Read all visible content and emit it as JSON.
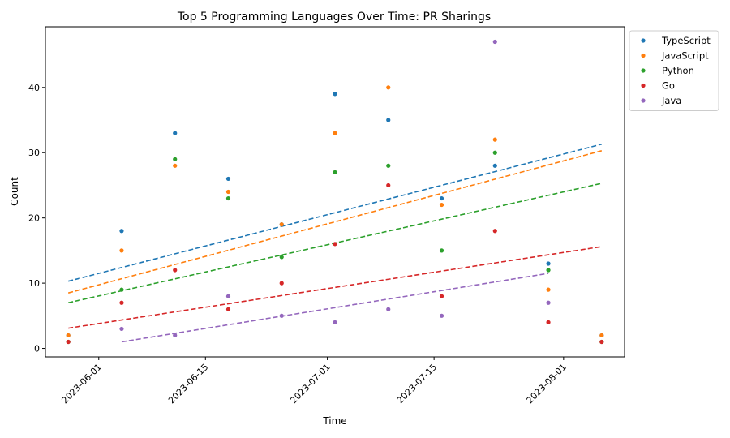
{
  "chart_data": {
    "type": "scatter",
    "title": "Top 5 Programming Languages Over Time: PR Sharings",
    "xlabel": "Time",
    "ylabel": "Count",
    "x": [
      "2023-05-28",
      "2023-06-04",
      "2023-06-11",
      "2023-06-18",
      "2023-06-25",
      "2023-07-02",
      "2023-07-09",
      "2023-07-16",
      "2023-07-23",
      "2023-07-30",
      "2023-08-06"
    ],
    "xticks": [
      "2023-06-01",
      "2023-06-15",
      "2023-07-01",
      "2023-07-15",
      "2023-08-01"
    ],
    "xlim": [
      "2023-05-25",
      "2023-08-09"
    ],
    "yticks": [
      0,
      10,
      20,
      30,
      40
    ],
    "ylim": [
      -1.3,
      49.3
    ],
    "grid": false,
    "legend_position": "outside top-right",
    "series": [
      {
        "name": "TypeScript",
        "color": "#1f77b4",
        "values": [
          2,
          18,
          33,
          26,
          19,
          39,
          35,
          23,
          28,
          13,
          2
        ],
        "trend": [
          10.3,
          31.3
        ]
      },
      {
        "name": "JavaScript",
        "color": "#ff7f0e",
        "values": [
          2,
          15,
          28,
          24,
          19,
          33,
          40,
          22,
          32,
          9,
          2
        ],
        "trend": [
          8.5,
          30.3
        ]
      },
      {
        "name": "Python",
        "color": "#2ca02c",
        "values": [
          1,
          9,
          29,
          23,
          14,
          27,
          28,
          15,
          30,
          12,
          1
        ],
        "trend": [
          7.0,
          25.3
        ]
      },
      {
        "name": "Go",
        "color": "#d62728",
        "values": [
          1,
          7,
          12,
          6,
          10,
          16,
          25,
          8,
          18,
          4,
          1
        ],
        "trend": [
          3.1,
          15.6
        ]
      },
      {
        "name": "Java",
        "color": "#9467bd",
        "values": [
          null,
          3,
          2,
          8,
          5,
          4,
          6,
          5,
          47,
          7,
          null
        ],
        "trend": [
          1.0,
          11.5
        ]
      }
    ]
  }
}
